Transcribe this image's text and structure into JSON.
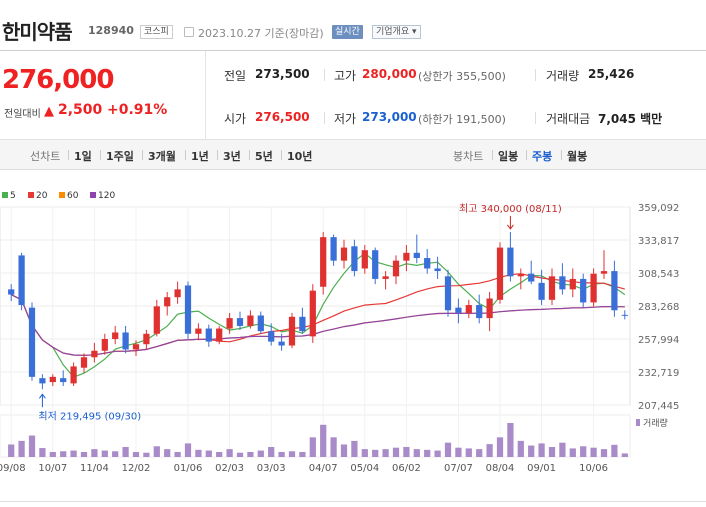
{
  "header": {
    "name": "한미약품",
    "code": "128940",
    "market": "코스피",
    "date": "2023.10.27 기준(장마감)",
    "realtime": "실시간",
    "company_info": "기업개요 ▾"
  },
  "price": {
    "current": "276,000",
    "diff_label": "전일대비",
    "diff_arrow": "▲",
    "diff": "2,500",
    "pct": "+0.91%"
  },
  "stats": {
    "prev_label": "전일",
    "prev": "273,500",
    "high_label": "고가",
    "high": "280,000",
    "upper_limit": "(상한가 355,500)",
    "volume_label": "거래량",
    "volume": "25,426",
    "open_label": "시가",
    "open": "276,500",
    "low_label": "저가",
    "low": "273,000",
    "lower_limit": "(하한가 191,500)",
    "amount_label": "거래대금",
    "amount": "7,045 백만"
  },
  "periods": {
    "line_label": "선차트",
    "items": [
      "1일",
      "1주일",
      "3개월",
      "1년",
      "3년",
      "5년",
      "10년"
    ],
    "candle_label": "봉차트",
    "candles": [
      "일봉",
      "주봉",
      "월봉"
    ],
    "active_candle": "주봉"
  },
  "colors": {
    "up": "#e03131",
    "down": "#3a6fd8",
    "ma5": "#4caf50",
    "ma20": "#e53935",
    "ma60": "#fb8c00",
    "ma120": "#8e44ad"
  },
  "chart_data": {
    "type": "candlestick",
    "legend": [
      {
        "name": "5",
        "color": "#4caf50"
      },
      {
        "name": "20",
        "color": "#e53935"
      },
      {
        "name": "60",
        "color": "#fb8c00"
      },
      {
        "name": "120",
        "color": "#8e44ad"
      }
    ],
    "y_ticks": [
      "359,092",
      "333,817",
      "308,543",
      "283,268",
      "257,994",
      "232,719",
      "207,445"
    ],
    "y_tick_values": [
      359092,
      333817,
      308543,
      283268,
      257994,
      232719,
      207445
    ],
    "ylim": [
      207445,
      359092
    ],
    "x_ticks": [
      "09/08",
      "10/07",
      "11/04",
      "12/02",
      "01/06",
      "02/03",
      "03/03",
      "04/07",
      "05/04",
      "06/02",
      "07/07",
      "08/04",
      "09/01",
      "10/06"
    ],
    "x_tick_index": [
      0,
      4,
      8,
      12,
      17,
      21,
      25,
      30,
      34,
      38,
      43,
      47,
      51,
      56
    ],
    "annotation_high": "최고 340,000 (08/11)",
    "annotation_high_index": 48,
    "annotation_high_value": 340000,
    "annotation_low": "최저 219,495 (09/30)",
    "annotation_low_index": 3,
    "annotation_low_value": 219495,
    "volume_label": "거래량",
    "candles": [
      [
        296000,
        300000,
        287000,
        292000
      ],
      [
        322000,
        324000,
        280000,
        284000
      ],
      [
        282000,
        286000,
        226000,
        229000
      ],
      [
        228000,
        231000,
        219495,
        224000
      ],
      [
        225000,
        231000,
        222000,
        229000
      ],
      [
        228000,
        234000,
        222000,
        225000
      ],
      [
        224000,
        240000,
        222000,
        237000
      ],
      [
        236000,
        247000,
        232000,
        244000
      ],
      [
        244000,
        255000,
        240000,
        249000
      ],
      [
        249000,
        262000,
        246000,
        258000
      ],
      [
        258000,
        268000,
        254000,
        263000
      ],
      [
        263000,
        268000,
        247000,
        250000
      ],
      [
        250000,
        257000,
        245000,
        254000
      ],
      [
        254000,
        265000,
        250000,
        262000
      ],
      [
        262000,
        288000,
        260000,
        283000
      ],
      [
        283000,
        294000,
        276000,
        290000
      ],
      [
        290000,
        302000,
        285000,
        296000
      ],
      [
        299000,
        302000,
        258000,
        262000
      ],
      [
        262000,
        270000,
        257000,
        266000
      ],
      [
        266000,
        269000,
        252000,
        256000
      ],
      [
        256000,
        268000,
        254000,
        266000
      ],
      [
        266000,
        278000,
        262000,
        274000
      ],
      [
        274000,
        279000,
        265000,
        268000
      ],
      [
        268000,
        280000,
        266000,
        276000
      ],
      [
        276000,
        279000,
        262000,
        264000
      ],
      [
        264000,
        270000,
        253000,
        256000
      ],
      [
        256000,
        262000,
        249000,
        253000
      ],
      [
        253000,
        278000,
        251000,
        275000
      ],
      [
        275000,
        282000,
        262000,
        264000
      ],
      [
        260000,
        300000,
        255000,
        295000
      ],
      [
        298000,
        340000,
        292000,
        336000
      ],
      [
        336000,
        338000,
        314000,
        318000
      ],
      [
        318000,
        334000,
        312000,
        328000
      ],
      [
        329000,
        334000,
        306000,
        310000
      ],
      [
        312000,
        330000,
        308000,
        326000
      ],
      [
        326000,
        328000,
        300000,
        304000
      ],
      [
        304000,
        310000,
        296000,
        306000
      ],
      [
        306000,
        322000,
        300000,
        318000
      ],
      [
        318000,
        330000,
        310000,
        324000
      ],
      [
        324000,
        338000,
        316000,
        320000
      ],
      [
        320000,
        327000,
        308000,
        312000
      ],
      [
        312000,
        321000,
        304000,
        310000
      ],
      [
        306000,
        311000,
        275000,
        280000
      ],
      [
        282000,
        289000,
        270000,
        278000
      ],
      [
        278000,
        288000,
        274000,
        284000
      ],
      [
        284000,
        292000,
        270000,
        274000
      ],
      [
        274000,
        294000,
        264000,
        289000
      ],
      [
        288000,
        332000,
        285000,
        328000
      ],
      [
        328000,
        340000,
        302000,
        306000
      ],
      [
        306000,
        312000,
        296000,
        308000
      ],
      [
        308000,
        318000,
        300000,
        302000
      ],
      [
        301000,
        311000,
        284000,
        288000
      ],
      [
        288000,
        312000,
        284000,
        306000
      ],
      [
        306000,
        316000,
        292000,
        296000
      ],
      [
        296000,
        312000,
        290000,
        304000
      ],
      [
        304000,
        308000,
        282000,
        286000
      ],
      [
        286000,
        312000,
        283000,
        308000
      ],
      [
        308000,
        326000,
        304000,
        310000
      ],
      [
        310000,
        318000,
        275000,
        280000
      ],
      [
        276500,
        280000,
        273000,
        276000
      ]
    ],
    "volume": [
      35,
      45,
      60,
      25,
      14,
      16,
      18,
      14,
      22,
      18,
      16,
      28,
      14,
      12,
      30,
      22,
      14,
      38,
      20,
      18,
      14,
      22,
      12,
      14,
      18,
      28,
      14,
      16,
      14,
      55,
      90,
      55,
      35,
      45,
      22,
      20,
      22,
      26,
      28,
      22,
      20,
      18,
      40,
      26,
      24,
      22,
      36,
      55,
      95,
      45,
      32,
      38,
      28,
      40,
      24,
      30,
      26,
      22,
      34,
      10
    ]
  }
}
